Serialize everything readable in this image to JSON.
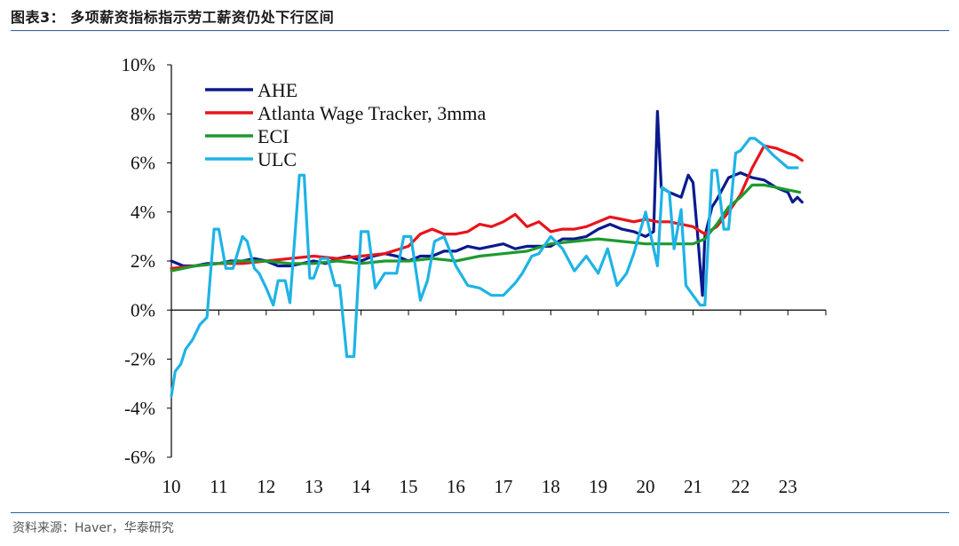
{
  "figure": {
    "title": "图表3：  多项薪资指标指示劳工薪资仍处下行区间",
    "source": "资料来源：Haver，华泰研究"
  },
  "chart_data": {
    "type": "line",
    "title": "",
    "xlabel": "",
    "ylabel": "",
    "x_ticks": [
      "10",
      "11",
      "12",
      "13",
      "14",
      "15",
      "16",
      "17",
      "18",
      "19",
      "20",
      "21",
      "22",
      "23"
    ],
    "y_ticks": [
      "10%",
      "8%",
      "6%",
      "4%",
      "2%",
      "0%",
      "-2%",
      "-4%",
      "-6%"
    ],
    "ylim": [
      -6,
      10
    ],
    "xlim": [
      2010.0,
      2023.8
    ],
    "grid": false,
    "legend_position": "top-left",
    "series": [
      {
        "name": "AHE",
        "color": "#0b1a8c",
        "x": [
          2010.0,
          2010.25,
          2010.5,
          2010.75,
          2011.0,
          2011.25,
          2011.5,
          2011.75,
          2012.0,
          2012.25,
          2012.5,
          2012.75,
          2013.0,
          2013.25,
          2013.5,
          2013.75,
          2014.0,
          2014.25,
          2014.5,
          2014.75,
          2015.0,
          2015.25,
          2015.5,
          2015.75,
          2016.0,
          2016.25,
          2016.5,
          2016.75,
          2017.0,
          2017.25,
          2017.5,
          2017.75,
          2018.0,
          2018.25,
          2018.5,
          2018.75,
          2019.0,
          2019.25,
          2019.5,
          2019.75,
          2020.0,
          2020.17,
          2020.25,
          2020.33,
          2020.5,
          2020.75,
          2020.9,
          2021.0,
          2021.1,
          2021.2,
          2021.25,
          2021.4,
          2021.5,
          2021.75,
          2022.0,
          2022.25,
          2022.5,
          2022.75,
          2023.0,
          2023.1,
          2023.2,
          2023.3
        ],
        "y": [
          2.0,
          1.8,
          1.8,
          1.9,
          1.9,
          2.0,
          2.0,
          2.1,
          2.0,
          1.8,
          1.8,
          1.9,
          2.0,
          1.9,
          2.1,
          2.2,
          2.0,
          2.2,
          2.3,
          2.2,
          2.0,
          2.2,
          2.2,
          2.4,
          2.4,
          2.6,
          2.5,
          2.6,
          2.7,
          2.5,
          2.6,
          2.6,
          2.6,
          2.9,
          2.9,
          3.0,
          3.3,
          3.5,
          3.3,
          3.2,
          3.0,
          3.2,
          8.1,
          5.0,
          4.8,
          4.6,
          5.5,
          5.2,
          3.0,
          0.6,
          3.0,
          4.2,
          4.5,
          5.4,
          5.6,
          5.4,
          5.3,
          5.0,
          4.8,
          4.4,
          4.6,
          4.4
        ]
      },
      {
        "name": "Atlanta Wage Tracker, 3mma",
        "color": "#e8141b",
        "x": [
          2010.0,
          2010.5,
          2011.0,
          2011.5,
          2012.0,
          2012.5,
          2013.0,
          2013.5,
          2014.0,
          2014.5,
          2015.0,
          2015.25,
          2015.5,
          2015.75,
          2016.0,
          2016.25,
          2016.5,
          2016.75,
          2017.0,
          2017.25,
          2017.5,
          2017.75,
          2018.0,
          2018.25,
          2018.5,
          2018.75,
          2019.0,
          2019.25,
          2019.5,
          2019.75,
          2020.0,
          2020.25,
          2020.5,
          2020.75,
          2021.0,
          2021.25,
          2021.5,
          2021.75,
          2022.0,
          2022.25,
          2022.5,
          2022.75,
          2023.0,
          2023.15,
          2023.3
        ],
        "y": [
          1.7,
          1.8,
          1.9,
          1.9,
          2.0,
          2.1,
          2.2,
          2.1,
          2.2,
          2.3,
          2.6,
          3.1,
          3.3,
          3.1,
          3.1,
          3.2,
          3.5,
          3.4,
          3.6,
          3.9,
          3.4,
          3.6,
          3.2,
          3.3,
          3.3,
          3.4,
          3.6,
          3.8,
          3.7,
          3.6,
          3.7,
          3.6,
          3.6,
          3.5,
          3.4,
          3.1,
          3.4,
          4.0,
          4.7,
          5.8,
          6.7,
          6.6,
          6.4,
          6.3,
          6.1
        ]
      },
      {
        "name": "ECI",
        "color": "#1d9a2e",
        "x": [
          2010.0,
          2010.5,
          2011.0,
          2011.5,
          2012.0,
          2012.5,
          2013.0,
          2013.5,
          2014.0,
          2014.5,
          2015.0,
          2015.5,
          2016.0,
          2016.5,
          2017.0,
          2017.5,
          2018.0,
          2018.5,
          2019.0,
          2019.5,
          2020.0,
          2020.5,
          2021.0,
          2021.25,
          2021.5,
          2021.75,
          2022.0,
          2022.25,
          2022.5,
          2022.75,
          2023.0,
          2023.25
        ],
        "y": [
          1.6,
          1.8,
          1.9,
          2.0,
          2.0,
          1.9,
          1.9,
          2.0,
          1.9,
          2.0,
          2.0,
          2.1,
          2.0,
          2.2,
          2.3,
          2.4,
          2.7,
          2.8,
          2.9,
          2.8,
          2.7,
          2.7,
          2.7,
          2.9,
          3.5,
          4.2,
          4.6,
          5.1,
          5.1,
          5.0,
          4.9,
          4.8
        ]
      },
      {
        "name": "ULC",
        "color": "#1fb3e6",
        "x": [
          2010.0,
          2010.08,
          2010.2,
          2010.3,
          2010.45,
          2010.6,
          2010.75,
          2010.9,
          2011.0,
          2011.15,
          2011.3,
          2011.5,
          2011.6,
          2011.75,
          2011.85,
          2012.0,
          2012.15,
          2012.25,
          2012.4,
          2012.5,
          2012.7,
          2012.8,
          2012.92,
          2013.0,
          2013.15,
          2013.3,
          2013.45,
          2013.55,
          2013.7,
          2013.85,
          2014.0,
          2014.15,
          2014.3,
          2014.5,
          2014.75,
          2014.9,
          2015.05,
          2015.25,
          2015.4,
          2015.55,
          2015.75,
          2016.0,
          2016.25,
          2016.5,
          2016.75,
          2017.0,
          2017.25,
          2017.4,
          2017.6,
          2017.75,
          2018.0,
          2018.25,
          2018.5,
          2018.75,
          2019.0,
          2019.2,
          2019.4,
          2019.6,
          2019.75,
          2020.0,
          2020.25,
          2020.35,
          2020.5,
          2020.6,
          2020.75,
          2020.85,
          2021.0,
          2021.15,
          2021.25,
          2021.4,
          2021.5,
          2021.65,
          2021.75,
          2021.9,
          2022.0,
          2022.2,
          2022.3,
          2022.5,
          2022.7,
          2023.0,
          2023.2
        ],
        "y": [
          -3.5,
          -2.5,
          -2.2,
          -1.6,
          -1.2,
          -0.6,
          -0.3,
          3.3,
          3.3,
          1.7,
          1.7,
          3.0,
          2.8,
          1.7,
          1.5,
          0.9,
          0.2,
          1.2,
          1.2,
          0.3,
          5.5,
          5.5,
          1.3,
          1.3,
          2.1,
          2.1,
          1.0,
          1.0,
          -1.9,
          -1.9,
          3.2,
          3.2,
          0.9,
          1.5,
          1.5,
          3.0,
          3.0,
          0.4,
          1.2,
          2.8,
          3.0,
          1.8,
          1.0,
          0.9,
          0.6,
          0.6,
          1.1,
          1.5,
          2.2,
          2.3,
          3.0,
          2.5,
          1.6,
          2.2,
          1.5,
          2.5,
          1.0,
          1.5,
          2.3,
          4.0,
          1.8,
          5.0,
          4.8,
          2.5,
          4.1,
          1.0,
          0.6,
          0.2,
          0.2,
          5.7,
          5.7,
          3.3,
          3.3,
          6.4,
          6.5,
          7.0,
          7.0,
          6.7,
          6.3,
          5.8,
          5.8
        ]
      }
    ]
  }
}
